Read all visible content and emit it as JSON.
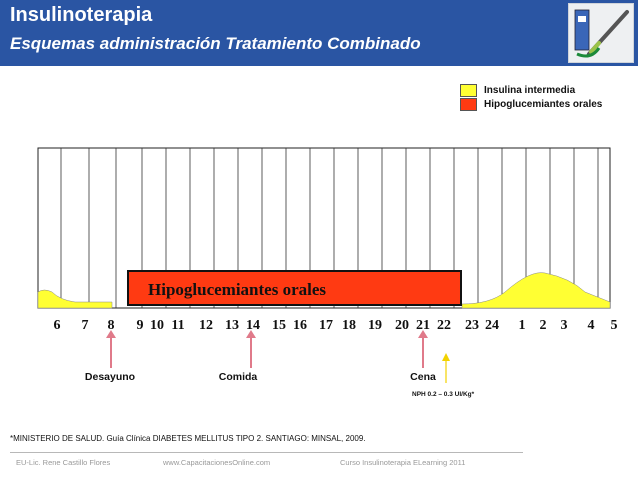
{
  "header": {
    "title": "Insulinoterapia",
    "subtitle": "Esquemas administración  Tratamiento Combinado",
    "image_icon": "insulin-pen-product-image"
  },
  "legend": [
    {
      "label": "Insulina intermedia",
      "color": "#ffff33"
    },
    {
      "label": "Hipoglucemiantes orales",
      "color": "#ff3a12"
    }
  ],
  "chart": {
    "hours": [
      "6",
      "7",
      "8",
      "9",
      "10",
      "11",
      "12",
      "13",
      "14",
      "15",
      "16",
      "17",
      "18",
      "19",
      "20",
      "21",
      "22",
      "23",
      "24",
      "1",
      "2",
      "3",
      "4",
      "5"
    ],
    "bar_label": "Hipoglucemiantes  orales",
    "meals": [
      {
        "label": "Desayuno",
        "hour": "8"
      },
      {
        "label": "Comida",
        "hour": "14"
      },
      {
        "label": "Cena",
        "hour": "21"
      }
    ],
    "nph_note": "NPH  0.2 – 0.3 UI/Kg*",
    "colors": {
      "insulin_curve": "#ffff33",
      "arrow": "#e07a8a",
      "nph_arrow": "#f2d200"
    }
  },
  "source_note": "*MINISTERIO DE SALUD. Guía Clínica DIABETES MELLITUS TIPO 2. SANTIAGO: MINSAL, 2009.",
  "footer": {
    "author": "EU-Lic. Rene Castillo Flores",
    "website": "www.CapacitacionesOnline.com",
    "course": "Curso Insulinoterapia ELearning 2011"
  }
}
